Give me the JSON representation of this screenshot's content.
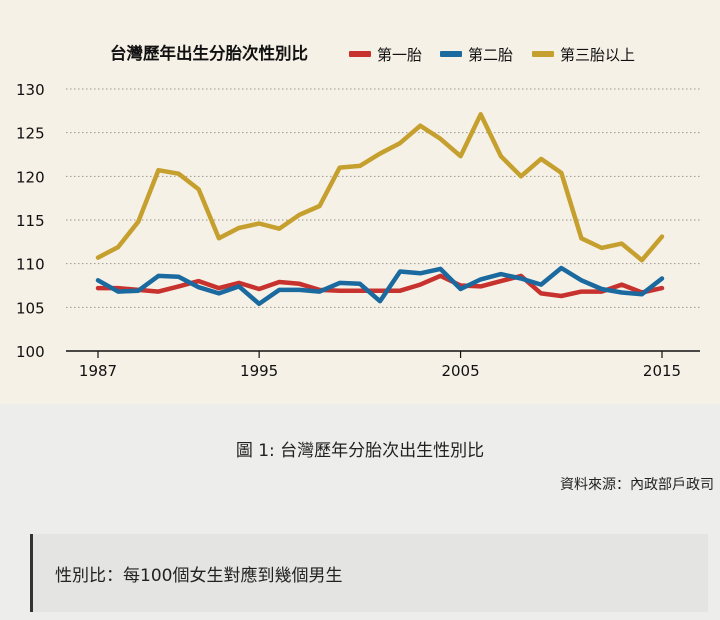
{
  "chart_data": {
    "type": "line",
    "title": "台灣歷年出生分胎次性別比",
    "xlabel": "",
    "ylabel": "",
    "xlim": [
      1987,
      2015
    ],
    "ylim": [
      100,
      130
    ],
    "yticks": [
      100,
      105,
      110,
      115,
      120,
      125,
      130
    ],
    "xticks": [
      1987,
      1995,
      2005,
      2015
    ],
    "grid": "horizontal dotted",
    "legend_position": "top",
    "x": [
      1987,
      1988,
      1989,
      1990,
      1991,
      1992,
      1993,
      1994,
      1995,
      1996,
      1997,
      1998,
      1999,
      2000,
      2001,
      2002,
      2003,
      2004,
      2005,
      2006,
      2007,
      2008,
      2009,
      2010,
      2011,
      2012,
      2013,
      2014,
      2015
    ],
    "series": [
      {
        "name": "第一胎",
        "color": "#c8322e",
        "values": [
          107.2,
          107.2,
          107.0,
          106.8,
          107.4,
          108.0,
          107.2,
          107.8,
          107.1,
          107.9,
          107.7,
          107.0,
          106.9,
          106.9,
          106.9,
          106.9,
          107.6,
          108.6,
          107.5,
          107.4,
          108.0,
          108.6,
          106.6,
          106.3,
          106.8,
          106.8,
          107.6,
          106.7,
          107.2
        ]
      },
      {
        "name": "第二胎",
        "color": "#1a6aa0",
        "values": [
          108.1,
          106.8,
          106.9,
          108.6,
          108.5,
          107.3,
          106.6,
          107.4,
          105.4,
          107.0,
          107.0,
          106.8,
          107.8,
          107.7,
          105.7,
          109.1,
          108.9,
          109.4,
          107.1,
          108.2,
          108.8,
          108.3,
          107.6,
          109.5,
          108.1,
          107.1,
          106.7,
          106.5,
          108.3
        ]
      },
      {
        "name": "第三胎以上",
        "color": "#c6a02e",
        "values": [
          110.7,
          111.9,
          114.8,
          120.7,
          120.3,
          118.5,
          112.9,
          114.1,
          114.6,
          114.0,
          115.6,
          116.6,
          121.0,
          121.2,
          122.6,
          123.8,
          125.8,
          124.3,
          122.3,
          127.1,
          122.3,
          120.0,
          122.0,
          120.4,
          112.9,
          111.8,
          112.3,
          110.4,
          113.1
        ]
      }
    ]
  },
  "caption": "圖 1: 台灣歷年分胎次出生性別比",
  "source": "資料來源：內政部戶政司",
  "note": "性別比：每100個女生對應到幾個男生"
}
